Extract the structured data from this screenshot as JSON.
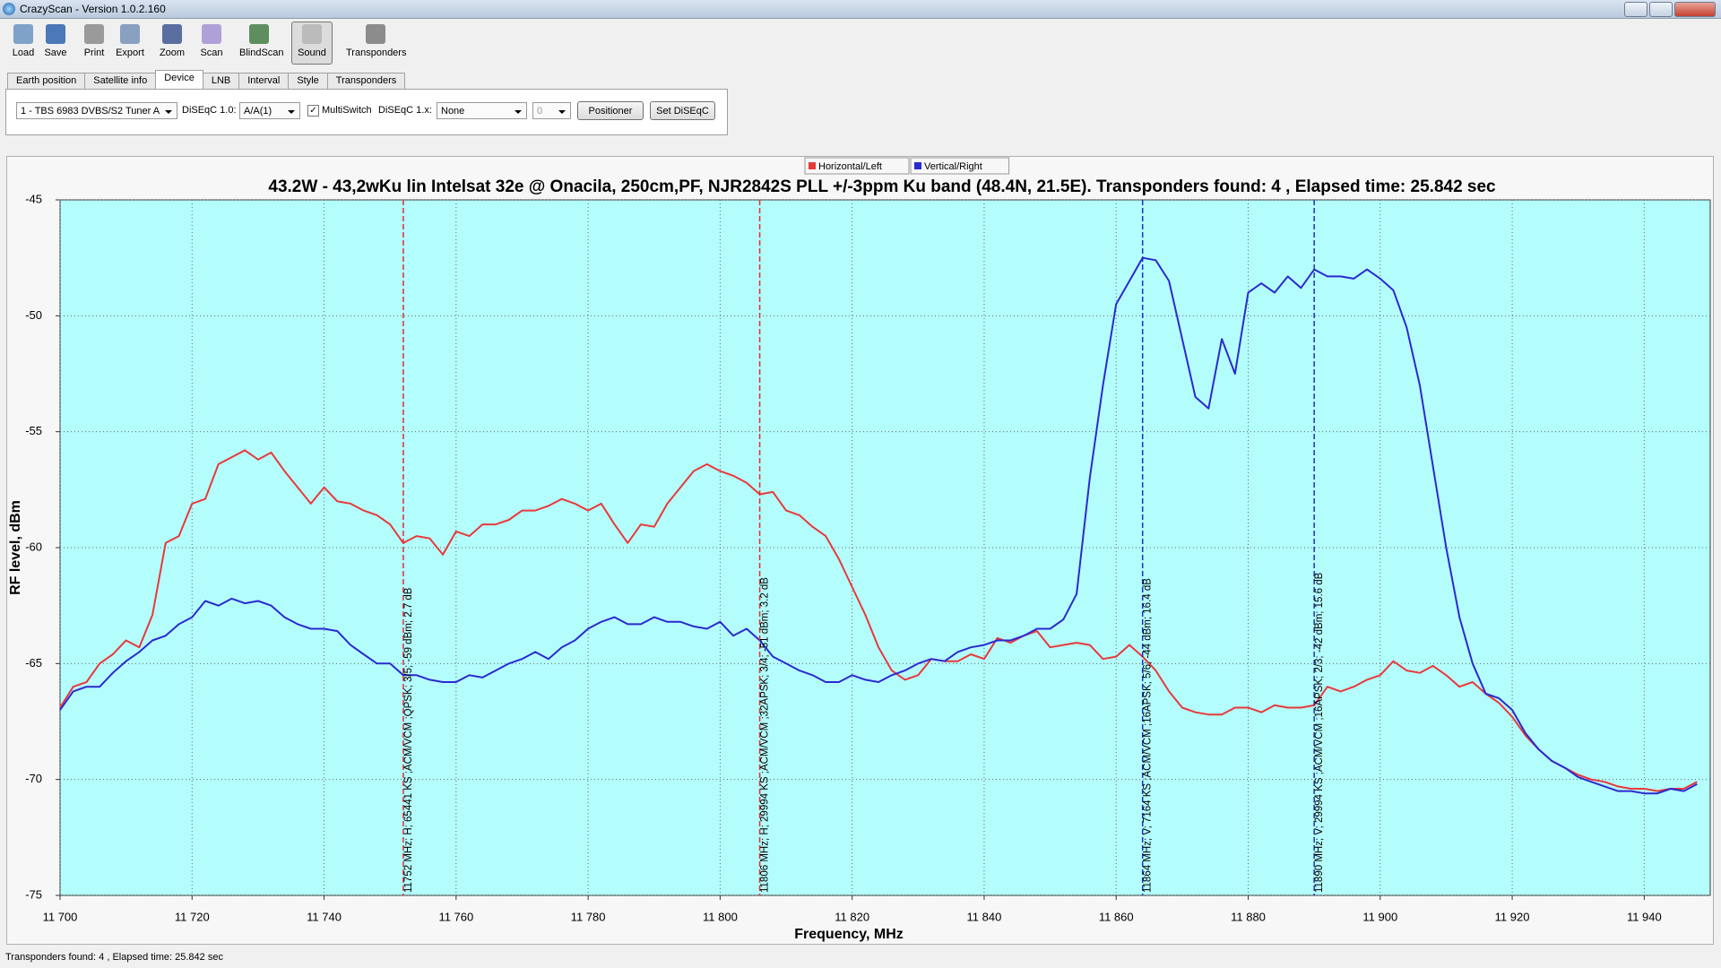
{
  "window": {
    "title": "CrazyScan - Version 1.0.2.160"
  },
  "toolbar": [
    "Load",
    "Save",
    "Print",
    "Export",
    "Zoom",
    "Scan",
    "BlindScan",
    "Sound",
    "Transponders"
  ],
  "tabs": [
    "Earth position",
    "Satellite info",
    "Device",
    "LNB",
    "Interval",
    "Style",
    "Transponders"
  ],
  "device": {
    "tuner": "1 - TBS 6983 DVBS/S2 Tuner A",
    "diseqc10_label": "DiSEqC 1.0:",
    "diseqc10": "A/A(1)",
    "multiswitch": "MultiSwitch",
    "diseqc1x_label": "DiSEqC 1.x:",
    "diseqc1x": "None",
    "spin": "0",
    "positioner": "Positioner",
    "set_diseqc": "Set DiSEqC"
  },
  "chart_data": {
    "type": "line",
    "title": "43.2W - 43,2wKu lin Intelsat 32e @ Onacila, 250cm,PF, NJR2842S PLL +/-3ppm Ku band (48.4N, 21.5E). Transponders found: 4 , Elapsed time: 25.842 sec",
    "x_label": "Frequency, MHz",
    "y_label": "RF level, dBm",
    "xlim": [
      11700,
      11950
    ],
    "ylim": [
      -75,
      -45
    ],
    "xticks": [
      {
        "value": 11700,
        "label": "11 700"
      },
      {
        "value": 11720,
        "label": "11 720"
      },
      {
        "value": 11740,
        "label": "11 740"
      },
      {
        "value": 11760,
        "label": "11 760"
      },
      {
        "value": 11780,
        "label": "11 780"
      },
      {
        "value": 11800,
        "label": "11 800"
      },
      {
        "value": 11820,
        "label": "11 820"
      },
      {
        "value": 11840,
        "label": "11 840"
      },
      {
        "value": 11860,
        "label": "11 860"
      },
      {
        "value": 11880,
        "label": "11 880"
      },
      {
        "value": 11900,
        "label": "11 900"
      },
      {
        "value": 11920,
        "label": "11 920"
      },
      {
        "value": 11940,
        "label": "11 940"
      }
    ],
    "yticks": [
      -45,
      -50,
      -55,
      -60,
      -65,
      -70,
      -75
    ],
    "grid": true,
    "legend": "top",
    "background": "#b4fdfd",
    "x": [
      11700,
      11702,
      11704,
      11706,
      11708,
      11710,
      11712,
      11714,
      11716,
      11718,
      11720,
      11722,
      11724,
      11726,
      11728,
      11730,
      11732,
      11734,
      11736,
      11738,
      11740,
      11742,
      11744,
      11746,
      11748,
      11750,
      11752,
      11754,
      11756,
      11758,
      11760,
      11762,
      11764,
      11766,
      11768,
      11770,
      11772,
      11774,
      11776,
      11778,
      11780,
      11782,
      11784,
      11786,
      11788,
      11790,
      11792,
      11794,
      11796,
      11798,
      11800,
      11802,
      11804,
      11806,
      11808,
      11810,
      11812,
      11814,
      11816,
      11818,
      11820,
      11822,
      11824,
      11826,
      11828,
      11830,
      11832,
      11834,
      11836,
      11838,
      11840,
      11842,
      11844,
      11846,
      11848,
      11850,
      11852,
      11854,
      11856,
      11858,
      11860,
      11862,
      11864,
      11866,
      11868,
      11870,
      11872,
      11874,
      11876,
      11878,
      11880,
      11882,
      11884,
      11886,
      11888,
      11890,
      11892,
      11894,
      11896,
      11898,
      11900,
      11902,
      11904,
      11906,
      11908,
      11910,
      11912,
      11914,
      11916,
      11918,
      11920,
      11922,
      11924,
      11926,
      11928,
      11930,
      11932,
      11934,
      11936,
      11938,
      11940,
      11942,
      11944,
      11946,
      11948
    ],
    "series": [
      {
        "name": "Horizontal/Left",
        "color": "#e8393a",
        "values": [
          -66.9,
          -66.0,
          -65.8,
          -65.0,
          -64.6,
          -64.0,
          -64.3,
          -62.9,
          -59.8,
          -59.5,
          -58.1,
          -57.9,
          -56.4,
          -56.1,
          -55.8,
          -56.2,
          -55.9,
          -56.7,
          -57.4,
          -58.1,
          -57.4,
          -58.0,
          -58.1,
          -58.4,
          -58.6,
          -59.0,
          -59.8,
          -59.5,
          -59.6,
          -60.3,
          -59.3,
          -59.5,
          -59.0,
          -59.0,
          -58.8,
          -58.4,
          -58.4,
          -58.2,
          -57.9,
          -58.1,
          -58.4,
          -58.1,
          -59.0,
          -59.8,
          -59.0,
          -59.1,
          -58.1,
          -57.4,
          -56.7,
          -56.4,
          -56.7,
          -56.9,
          -57.2,
          -57.7,
          -57.6,
          -58.4,
          -58.6,
          -59.1,
          -59.5,
          -60.5,
          -61.7,
          -62.9,
          -64.3,
          -65.3,
          -65.7,
          -65.5,
          -64.8,
          -64.9,
          -64.9,
          -64.6,
          -64.8,
          -63.9,
          -64.1,
          -63.8,
          -63.6,
          -64.3,
          -64.2,
          -64.1,
          -64.2,
          -64.8,
          -64.7,
          -64.2,
          -64.7,
          -65.3,
          -66.2,
          -66.9,
          -67.1,
          -67.2,
          -67.2,
          -66.9,
          -66.9,
          -67.1,
          -66.8,
          -66.9,
          -66.9,
          -66.8,
          -66.0,
          -66.2,
          -66.0,
          -65.7,
          -65.5,
          -64.9,
          -65.3,
          -65.4,
          -65.1,
          -65.5,
          -66.0,
          -65.8,
          -66.3,
          -66.7,
          -67.3,
          -68.1,
          -68.7,
          -69.2,
          -69.5,
          -69.8,
          -70.0,
          -70.1,
          -70.3,
          -70.4,
          -70.4,
          -70.5,
          -70.4,
          -70.4,
          -70.1
        ]
      },
      {
        "name": "Vertical/Right",
        "color": "#2a2ad0",
        "values": [
          -67.0,
          -66.2,
          -66.0,
          -66.0,
          -65.4,
          -64.9,
          -64.5,
          -64.0,
          -63.8,
          -63.3,
          -63.0,
          -62.3,
          -62.5,
          -62.2,
          -62.4,
          -62.3,
          -62.5,
          -63.0,
          -63.3,
          -63.5,
          -63.5,
          -63.6,
          -64.2,
          -64.6,
          -65.0,
          -65.0,
          -65.5,
          -65.5,
          -65.7,
          -65.8,
          -65.8,
          -65.5,
          -65.6,
          -65.3,
          -65.0,
          -64.8,
          -64.5,
          -64.8,
          -64.3,
          -64.0,
          -63.5,
          -63.2,
          -63.0,
          -63.3,
          -63.3,
          -63.0,
          -63.2,
          -63.2,
          -63.4,
          -63.5,
          -63.2,
          -63.8,
          -63.5,
          -64.0,
          -64.7,
          -65.0,
          -65.3,
          -65.5,
          -65.8,
          -65.8,
          -65.5,
          -65.7,
          -65.8,
          -65.5,
          -65.3,
          -65.0,
          -64.8,
          -64.9,
          -64.5,
          -64.3,
          -64.2,
          -64.0,
          -64.0,
          -63.8,
          -63.5,
          -63.5,
          -63.1,
          -62.0,
          -57.0,
          -53.0,
          -49.5,
          -48.5,
          -47.5,
          -47.6,
          -48.5,
          -51.0,
          -53.5,
          -54.0,
          -51.0,
          -52.5,
          -49.0,
          -48.6,
          -49.0,
          -48.3,
          -48.8,
          -48.0,
          -48.3,
          -48.3,
          -48.4,
          -48.0,
          -48.4,
          -48.9,
          -50.5,
          -53.0,
          -56.5,
          -60.0,
          -63.0,
          -65.0,
          -66.3,
          -66.5,
          -67.0,
          -68.0,
          -68.7,
          -69.2,
          -69.5,
          -69.9,
          -70.1,
          -70.3,
          -70.5,
          -70.5,
          -70.6,
          -70.6,
          -70.4,
          -70.5,
          -70.2
        ]
      }
    ],
    "markers": [
      {
        "x": 11752,
        "color": "#e03030",
        "label": "11752 MHz; H; 65441 KS ;ACM/VCM ;QPSK; 3/5; -59 dBm; 2.7 dB"
      },
      {
        "x": 11806,
        "color": "#e03030",
        "label": "11806 MHz; H; 29994 KS ;ACM/VCM ;32APSK; 3/4; -51 dBm; 3.2 dB"
      },
      {
        "x": 11864,
        "color": "#2030c0",
        "label": "11864 MHz; V; 7164 KS ;ACM/VCM ;16APSK; 5/6; -44 dBm; 16.4 dB"
      },
      {
        "x": 11890,
        "color": "#2030c0",
        "label": "11890 MHz; V; 29994 KS ;ACM/VCM ;16APSK; 2/3; -42 dBm; 15.6 dB"
      }
    ]
  },
  "status": "Transponders found: 4 , Elapsed time: 25.842 sec"
}
